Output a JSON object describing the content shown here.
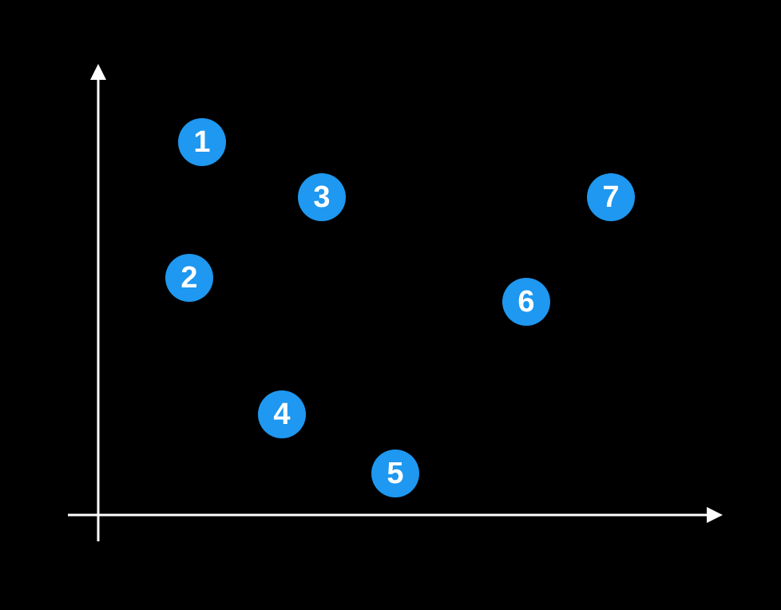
{
  "colors": {
    "background": "#000000",
    "axis": "#ffffff",
    "marker_fill": "#1e98f0",
    "marker_text": "#ffffff"
  },
  "axes": {
    "x_arrow": true,
    "y_arrow": true
  },
  "points": [
    {
      "label": "1"
    },
    {
      "label": "2"
    },
    {
      "label": "3"
    },
    {
      "label": "4"
    },
    {
      "label": "5"
    },
    {
      "label": "6"
    },
    {
      "label": "7"
    }
  ]
}
